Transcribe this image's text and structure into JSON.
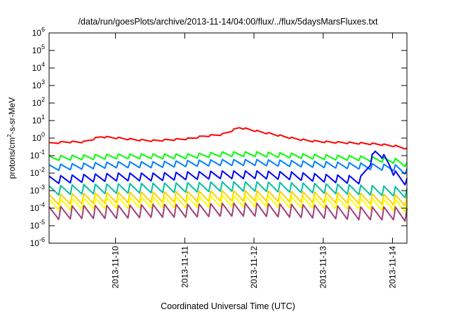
{
  "chart_data": {
    "type": "line",
    "title": "/data/run/goesPlots/archive/2013-11-14/04:00/flux/../flux/5daysMarsFluxes.txt",
    "xlabel": "Coordinated Universal Time (UTC)",
    "ylabel_parts": {
      "base": "protons/cm",
      "sup": "2",
      "rest": "-s-sr-MeV"
    },
    "yscale": "log",
    "ylim": [
      1e-06,
      1000000.0
    ],
    "xlim": [
      "2013-11-09T01:00",
      "2013-11-14T05:00"
    ],
    "grid": false,
    "legend": "none",
    "x_ticks": [
      "2013-11-10",
      "2013-11-11",
      "2013-11-12",
      "2013-11-13",
      "2013-11-14"
    ],
    "y_ticks": [
      {
        "value": 1e-06,
        "base": "10",
        "exp": "-6"
      },
      {
        "value": 1e-05,
        "base": "10",
        "exp": "-5"
      },
      {
        "value": 0.0001,
        "base": "10",
        "exp": "-4"
      },
      {
        "value": 0.001,
        "base": "10",
        "exp": "-3"
      },
      {
        "value": 0.01,
        "base": "10",
        "exp": "-2"
      },
      {
        "value": 0.1,
        "base": "10",
        "exp": "-1"
      },
      {
        "value": 1,
        "base": "10",
        "exp": "0"
      },
      {
        "value": 10,
        "base": "10",
        "exp": "1"
      },
      {
        "value": 100,
        "base": "10",
        "exp": "2"
      },
      {
        "value": 1000,
        "base": "10",
        "exp": "3"
      },
      {
        "value": 10000,
        "base": "10",
        "exp": "4"
      },
      {
        "value": 100000,
        "base": "10",
        "exp": "5"
      },
      {
        "value": 1000000,
        "base": "10",
        "exp": "6"
      }
    ],
    "series": [
      {
        "color": "#ff0000",
        "x": [
          "2013-11-09T01:00",
          "2013-11-09T07:00",
          "2013-11-09T13:00",
          "2013-11-09T19:00",
          "2013-11-10T01:00",
          "2013-11-10T07:00",
          "2013-11-10T13:00",
          "2013-11-10T19:00",
          "2013-11-11T01:00",
          "2013-11-11T07:00",
          "2013-11-11T13:00",
          "2013-11-11T19:00",
          "2013-11-12T01:00",
          "2013-11-12T07:00",
          "2013-11-12T13:00",
          "2013-11-12T19:00",
          "2013-11-13T01:00",
          "2013-11-13T07:00",
          "2013-11-13T13:00",
          "2013-11-13T19:00",
          "2013-11-14T01:00",
          "2013-11-14T05:00"
        ],
        "y": [
          0.5,
          0.6,
          0.6,
          1.2,
          1.0,
          0.8,
          0.7,
          0.8,
          0.9,
          1.3,
          1.6,
          4.0,
          2.5,
          1.6,
          1.0,
          0.7,
          0.6,
          0.55,
          0.5,
          0.45,
          0.35,
          0.25
        ]
      },
      {
        "color": "#00ff00",
        "x": [
          "2013-11-09T01:00",
          "2013-11-09T13:00",
          "2013-11-10T01:00",
          "2013-11-10T13:00",
          "2013-11-11T01:00",
          "2013-11-11T13:00",
          "2013-11-12T01:00",
          "2013-11-12T13:00",
          "2013-11-13T01:00",
          "2013-11-13T13:00",
          "2013-11-14T01:00",
          "2013-11-14T05:00"
        ],
        "y": [
          0.07,
          0.08,
          0.09,
          0.09,
          0.09,
          0.12,
          0.12,
          0.1,
          0.08,
          0.07,
          0.05,
          0.03
        ]
      },
      {
        "color": "#0080ff",
        "x": [
          "2013-11-09T01:00",
          "2013-11-09T13:00",
          "2013-11-10T01:00",
          "2013-11-10T13:00",
          "2013-11-11T01:00",
          "2013-11-11T13:00",
          "2013-11-12T01:00",
          "2013-11-12T13:00",
          "2013-11-13T01:00",
          "2013-11-13T13:00",
          "2013-11-14T01:00",
          "2013-11-14T05:00"
        ],
        "y": [
          0.02,
          0.025,
          0.03,
          0.03,
          0.035,
          0.04,
          0.04,
          0.035,
          0.03,
          0.025,
          0.02,
          0.012
        ]
      },
      {
        "color": "#0000ff",
        "x": [
          "2013-11-09T01:00",
          "2013-11-09T13:00",
          "2013-11-10T01:00",
          "2013-11-10T13:00",
          "2013-11-11T01:00",
          "2013-11-11T13:00",
          "2013-11-12T01:00",
          "2013-11-12T13:00",
          "2013-11-13T01:00",
          "2013-11-13T13:00",
          "2013-11-13T18:00",
          "2013-11-13T20:00",
          "2013-11-13T23:00",
          "2013-11-14T01:00",
          "2013-11-14T05:00"
        ],
        "y": [
          0.004,
          0.005,
          0.006,
          0.006,
          0.007,
          0.008,
          0.008,
          0.007,
          0.005,
          0.004,
          0.15,
          0.12,
          0.03,
          0.008,
          0.003
        ]
      },
      {
        "color": "#00c0a0",
        "x": [
          "2013-11-09T01:00",
          "2013-11-09T13:00",
          "2013-11-10T01:00",
          "2013-11-10T13:00",
          "2013-11-11T01:00",
          "2013-11-11T13:00",
          "2013-11-12T01:00",
          "2013-11-12T13:00",
          "2013-11-13T01:00",
          "2013-11-13T13:00",
          "2013-11-14T01:00",
          "2013-11-14T05:00"
        ],
        "y": [
          0.001,
          0.0012,
          0.0013,
          0.0014,
          0.0015,
          0.0017,
          0.0017,
          0.0015,
          0.0013,
          0.0011,
          0.0009,
          0.0007
        ]
      },
      {
        "color": "#ffd000",
        "x": [
          "2013-11-09T01:00",
          "2013-11-09T13:00",
          "2013-11-10T01:00",
          "2013-11-10T13:00",
          "2013-11-11T01:00",
          "2013-11-11T13:00",
          "2013-11-12T01:00",
          "2013-11-12T13:00",
          "2013-11-13T01:00",
          "2013-11-13T13:00",
          "2013-11-14T01:00",
          "2013-11-14T05:00"
        ],
        "y": [
          0.0003,
          0.00035,
          0.0004,
          0.00042,
          0.00045,
          0.0005,
          0.0005,
          0.00045,
          0.0004,
          0.00035,
          0.0003,
          0.00025
        ]
      },
      {
        "color": "#ffff00",
        "x": [
          "2013-11-09T01:00",
          "2013-11-09T13:00",
          "2013-11-10T01:00",
          "2013-11-10T13:00",
          "2013-11-11T01:00",
          "2013-11-11T13:00",
          "2013-11-12T01:00",
          "2013-11-12T13:00",
          "2013-11-13T01:00",
          "2013-11-13T13:00",
          "2013-11-14T01:00",
          "2013-11-14T05:00"
        ],
        "y": [
          0.00015,
          0.00018,
          0.0002,
          0.00021,
          0.00022,
          0.00025,
          0.00025,
          0.00022,
          0.0002,
          0.00018,
          0.00015,
          0.00012
        ]
      },
      {
        "color": "#a0407a",
        "x": [
          "2013-11-09T01:00",
          "2013-11-09T13:00",
          "2013-11-10T01:00",
          "2013-11-10T13:00",
          "2013-11-11T01:00",
          "2013-11-11T13:00",
          "2013-11-12T01:00",
          "2013-11-12T13:00",
          "2013-11-13T01:00",
          "2013-11-13T13:00",
          "2013-11-14T01:00",
          "2013-11-14T05:00"
        ],
        "y": [
          5e-05,
          6e-05,
          6e-05,
          7e-05,
          7e-05,
          8e-05,
          8e-05,
          7e-05,
          6e-05,
          5e-05,
          5e-05,
          4e-05
        ]
      }
    ]
  }
}
